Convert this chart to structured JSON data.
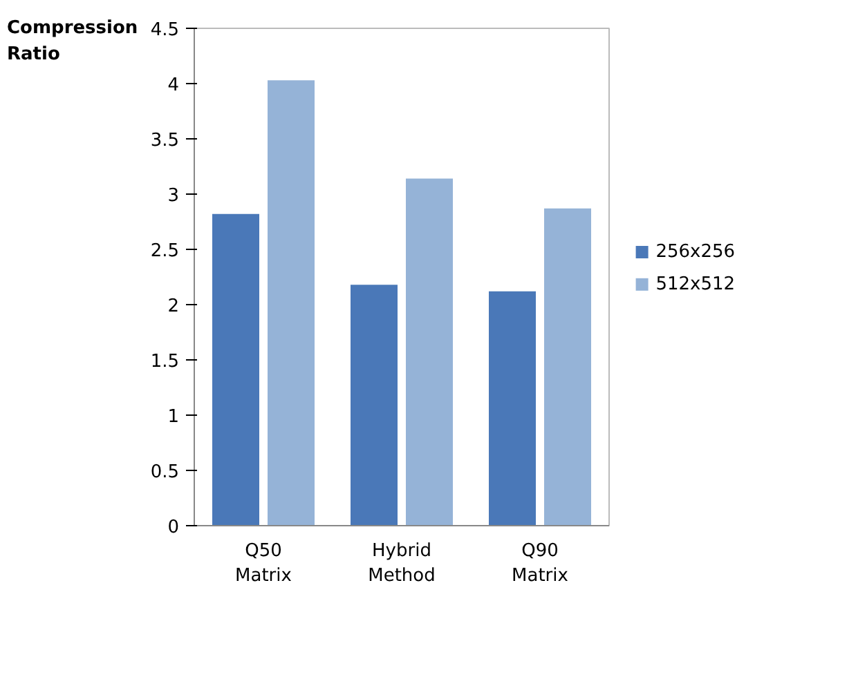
{
  "chart_data": {
    "type": "bar",
    "ylabel": "Compression Ratio",
    "categories": [
      "Q50 Matrix",
      "Hybrid Method",
      "Q90 Matrix"
    ],
    "series": [
      {
        "name": "256x256",
        "color": "#4a78b8",
        "values": [
          2.82,
          2.18,
          2.12
        ]
      },
      {
        "name": "512x512",
        "color": "#95b3d7",
        "values": [
          4.03,
          3.14,
          2.87
        ]
      }
    ],
    "ylim": [
      0,
      4.5
    ],
    "yticks": [
      0,
      0.5,
      1,
      1.5,
      2,
      2.5,
      3,
      3.5,
      4,
      4.5
    ],
    "grid": false,
    "legend": "right"
  }
}
